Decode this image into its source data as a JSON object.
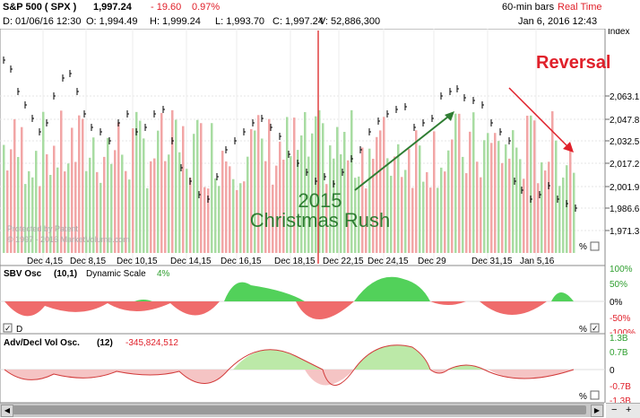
{
  "header": {
    "symbol": "S&P 500 ( SPX )",
    "price": "1,997.24",
    "change": "- 19.60",
    "change_pct": "0.97%",
    "bar_type": "60-min bars",
    "feed": "Real Time",
    "date_label": "D: 01/06/16 12:30",
    "open": "O: 1,994.49",
    "high": "H: 1,999.24",
    "low": "L: 1,993.70",
    "close": "C: 1,997.24",
    "volume": "V: 52,886,300",
    "timestamp": "Jan 6, 2016 12:43"
  },
  "main_chart": {
    "axis_title": "Index",
    "y_ticks": [
      "2,063.1",
      "2,047.8",
      "2,032.5",
      "2,017.2",
      "2,001.9",
      "1,986.6",
      "1,971.3"
    ],
    "x_labels": [
      "Dec 4,15",
      "Dec 8,15",
      "Dec 10,15",
      "Dec 14,15",
      "Dec 16,15",
      "Dec 18,15",
      "Dec 22,15",
      "Dec 24,15",
      "Dec 29",
      "Dec 31,15",
      "Jan 5,16"
    ],
    "annotation_rush_line1": "2015",
    "annotation_rush_line2": "Christmas Rush",
    "annotation_reversal": "Reversal",
    "watermark_line1": "Protected by Patent",
    "watermark_line2": "© 1997 - 2016 MarketVolume.com",
    "pct_label": "%",
    "colors": {
      "up": "#9fd69a",
      "down": "#f0a0a0",
      "price": "#000000",
      "rush_arrow": "#2e7d32",
      "reversal": "#e0202a"
    }
  },
  "sbv": {
    "title": "SBV Osc",
    "params": "(10,1)",
    "scale": "Dynamic Scale",
    "pct": "4%",
    "y_ticks": [
      "100%",
      "50%",
      "0%",
      "-50%",
      "-100%"
    ],
    "checkbox_label": "D",
    "pct_label": "%",
    "colors": {
      "pos": "#52d15a",
      "neg": "#ef6b6b"
    }
  },
  "advdecl": {
    "title": "Adv/Decl Vol Osc.",
    "params": "(12)",
    "value": "-345,824,512",
    "y_ticks_left": [
      "1.3B",
      "0.7B",
      "0",
      "-0.7B",
      "-1.3B"
    ],
    "pct_label": "%",
    "colors": {
      "pos": "#bce9a8",
      "neg": "#f5c4c4"
    }
  }
}
